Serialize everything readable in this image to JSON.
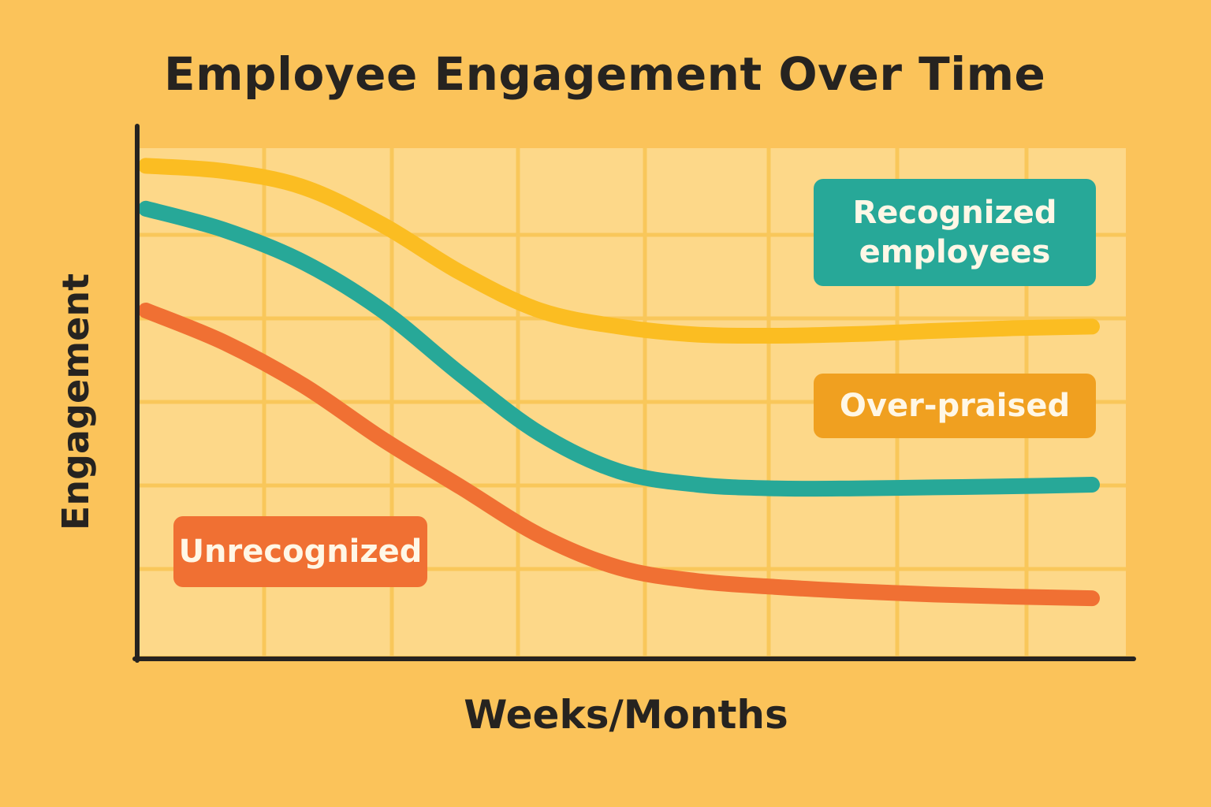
{
  "chart_data": {
    "type": "line",
    "title": "Employee Engagement Over Time",
    "xlabel": "Weeks/Months",
    "ylabel": "Engagement",
    "grid": true,
    "xlim": [
      0,
      100
    ],
    "ylim": [
      0,
      100
    ],
    "x": [
      0,
      8,
      16,
      24,
      32,
      40,
      48,
      56,
      64,
      72,
      80,
      88,
      96
    ],
    "series": [
      {
        "name": "Over-praised",
        "color": "#fbbd22",
        "label": "Over-praised",
        "label_color": "#f0a020",
        "values": [
          92,
          91,
          88,
          81,
          72,
          65,
          62,
          60.5,
          60.3,
          60.6,
          61.2,
          61.7,
          62
        ]
      },
      {
        "name": "Recognized employees",
        "color": "#27a898",
        "label": "Recognized employees",
        "label_color": "#27a898",
        "values": [
          84,
          80,
          74,
          65,
          53,
          42,
          35,
          32.5,
          31.8,
          31.8,
          32,
          32.2,
          32.5
        ]
      },
      {
        "name": "Unrecognized",
        "color": "#f07033",
        "label": "Unrecognized",
        "label_color": "#f07033",
        "values": [
          65,
          59,
          51,
          41,
          32,
          23,
          17,
          14.5,
          13.4,
          12.6,
          12,
          11.6,
          11.3
        ]
      }
    ]
  }
}
